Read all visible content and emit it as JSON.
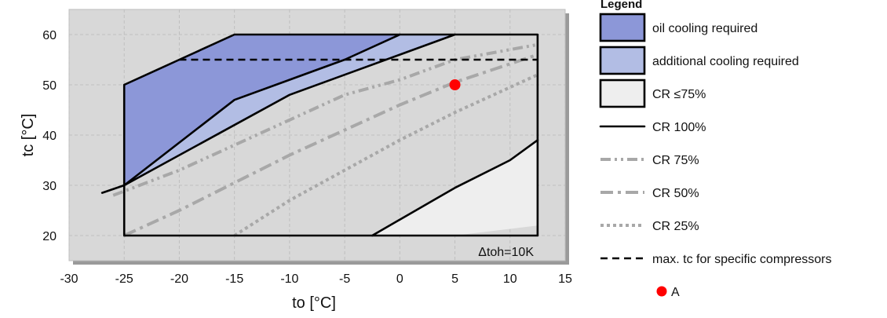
{
  "chart_data": {
    "type": "area",
    "xlabel": "to [°C]",
    "ylabel": "tc [°C]",
    "xlim": [
      -30,
      15
    ],
    "ylim": [
      15,
      65
    ],
    "x_ticks": [
      -30,
      -25,
      -20,
      -15,
      -10,
      -5,
      0,
      5,
      10,
      15
    ],
    "y_ticks": [
      20,
      30,
      40,
      50,
      60
    ],
    "grid": true,
    "annotation": "Δtoh=10K",
    "legend_title": "Legend",
    "legend_position": "right",
    "colors": {
      "plot_background": "#d8d8d8",
      "oil_cooling": "#8c97d8",
      "additional_cooling": "#b2bde4",
      "cr75_region": "#eeeeee",
      "dash_grey": "#a8a8a8",
      "point": "#ff0000"
    },
    "regions": [
      {
        "name": "oil cooling required",
        "color_key": "oil_cooling",
        "points": [
          [
            -25,
            30
          ],
          [
            -25,
            50
          ],
          [
            -22,
            53
          ],
          [
            -20,
            55
          ],
          [
            -15,
            60
          ],
          [
            0,
            60
          ],
          [
            -5,
            55
          ],
          [
            -10,
            51
          ],
          [
            -15,
            47
          ],
          [
            -25,
            30
          ]
        ]
      },
      {
        "name": "additional cooling required",
        "color_key": "additional_cooling",
        "points": [
          [
            -25,
            30
          ],
          [
            -15,
            47
          ],
          [
            -10,
            51
          ],
          [
            -5,
            55
          ],
          [
            0,
            60
          ],
          [
            5,
            60
          ],
          [
            0,
            56
          ],
          [
            -5,
            52
          ],
          [
            -10,
            48
          ],
          [
            -15,
            42
          ],
          [
            -25,
            30
          ]
        ]
      },
      {
        "name": "CR ≤75%",
        "color_key": "cr75_region",
        "points": [
          [
            -2.5,
            20
          ],
          [
            5,
            20
          ],
          [
            12.5,
            22
          ],
          [
            12.5,
            39
          ],
          [
            10,
            35
          ],
          [
            5,
            29.5
          ],
          [
            -2.5,
            20
          ]
        ]
      }
    ],
    "series": [
      {
        "name": "CR 100%",
        "style": "solid",
        "lines": [
          [
            [
              -25,
              50
            ],
            [
              -25,
              20
            ],
            [
              12.5,
              20
            ],
            [
              12.5,
              22
            ],
            [
              12.5,
              60
            ],
            [
              -15,
              60
            ],
            [
              -20,
              55
            ],
            [
              -22,
              53
            ],
            [
              -25,
              50
            ]
          ],
          [
            [
              -27,
              28.5
            ],
            [
              -25,
              30
            ],
            [
              -15,
              47
            ],
            [
              -10,
              51
            ],
            [
              -5,
              55
            ],
            [
              0,
              60
            ]
          ],
          [
            [
              -25,
              30
            ],
            [
              -15,
              42
            ],
            [
              -10,
              48
            ],
            [
              -5,
              52
            ],
            [
              0,
              56
            ],
            [
              5,
              60
            ]
          ],
          [
            [
              -2.5,
              20
            ],
            [
              5,
              29.5
            ],
            [
              10,
              35
            ],
            [
              12.5,
              39
            ]
          ]
        ]
      },
      {
        "name": "CR 75%",
        "style": "dash-dot-dot",
        "lines": [
          [
            [
              -26,
              28
            ],
            [
              -20,
              33
            ],
            [
              -15,
              38
            ],
            [
              -10,
              43
            ],
            [
              -5,
              48
            ],
            [
              0,
              51
            ],
            [
              5,
              55
            ],
            [
              12.5,
              58
            ]
          ]
        ]
      },
      {
        "name": "CR 50%",
        "style": "dash-dot",
        "lines": [
          [
            [
              -25,
              20
            ],
            [
              -20,
              25
            ],
            [
              -15,
              30.5
            ],
            [
              -10,
              36
            ],
            [
              -5,
              41
            ],
            [
              0,
              46
            ],
            [
              5,
              50.5
            ],
            [
              12.5,
              56
            ]
          ]
        ]
      },
      {
        "name": "CR 25%",
        "style": "dotted",
        "lines": [
          [
            [
              -15,
              20
            ],
            [
              -10,
              27
            ],
            [
              -5,
              33
            ],
            [
              0,
              39
            ],
            [
              5,
              44.5
            ],
            [
              12.5,
              52
            ]
          ]
        ]
      },
      {
        "name": "max. tc for specific compressors",
        "style": "dashed",
        "lines": [
          [
            [
              -20,
              55
            ],
            [
              12.5,
              55
            ]
          ]
        ]
      }
    ],
    "points": [
      {
        "name": "A",
        "x": 5,
        "y": 50
      }
    ],
    "legend": [
      {
        "label": "oil cooling required",
        "kind": "box",
        "color_key": "oil_cooling"
      },
      {
        "label": "additional cooling required",
        "kind": "box",
        "color_key": "additional_cooling"
      },
      {
        "label": "CR ≤75%",
        "kind": "box",
        "color_key": "cr75_region"
      },
      {
        "label": "CR 100%",
        "kind": "line",
        "style": "solid"
      },
      {
        "label": "CR 75%",
        "kind": "line",
        "style": "dash-dot-dot"
      },
      {
        "label": "CR 50%",
        "kind": "line",
        "style": "dash-dot"
      },
      {
        "label": "CR 25%",
        "kind": "line",
        "style": "dotted"
      },
      {
        "label": "max. tc for specific compressors",
        "kind": "line",
        "style": "dashed"
      },
      {
        "label": "A",
        "kind": "dot"
      }
    ]
  }
}
